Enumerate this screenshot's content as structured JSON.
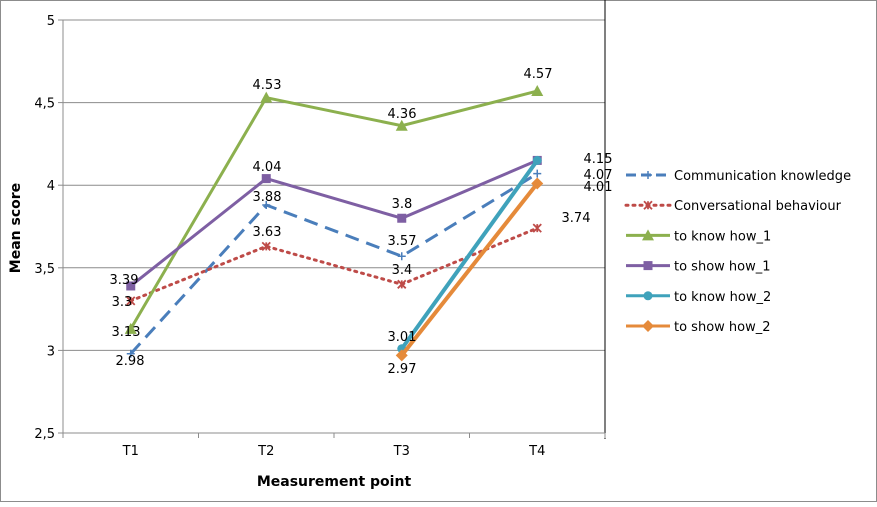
{
  "chart_data": {
    "type": "line",
    "title": "",
    "xlabel": "Measurement point",
    "ylabel": "Mean score",
    "categories": [
      "T1",
      "T2",
      "T3",
      "T4"
    ],
    "ylim": [
      2.5,
      5
    ],
    "yticks": [
      "2,5",
      "3",
      "3,5",
      "4",
      "4,5",
      "5"
    ],
    "ytick_values": [
      2.5,
      3,
      3.5,
      4,
      4.5,
      5
    ],
    "grid": true,
    "legend_position": "right",
    "series": [
      {
        "name": "Communication knowledge",
        "color": "#4A7EBB",
        "style": "dash",
        "marker": "plus",
        "values": [
          2.98,
          3.88,
          3.57,
          4.07
        ],
        "labels": [
          "2.98",
          "3.88",
          "3.57",
          "4.07"
        ]
      },
      {
        "name": "Conversational behaviour",
        "color": "#BE4B48",
        "style": "dot",
        "marker": "star",
        "values": [
          3.3,
          3.63,
          3.4,
          3.74
        ],
        "labels": [
          "3.3",
          "3.63",
          "3.4",
          "3.74"
        ]
      },
      {
        "name": "to know how_1",
        "color": "#8CB04E",
        "style": "solid",
        "marker": "triangle",
        "values": [
          3.13,
          4.53,
          4.36,
          4.57
        ],
        "labels": [
          "3.13",
          "4.53",
          "4.36",
          "4.57"
        ]
      },
      {
        "name": "to show how_1",
        "color": "#7E5FA3",
        "style": "solid",
        "marker": "square",
        "values": [
          3.39,
          4.04,
          3.8,
          4.15
        ],
        "labels": [
          "3.39",
          "4.04",
          "3.8",
          "4.15"
        ]
      },
      {
        "name": "to know how_2",
        "color": "#3FA2BB",
        "style": "solid",
        "marker": "circle",
        "values": [
          null,
          null,
          3.01,
          4.15
        ],
        "labels": [
          null,
          null,
          "3.01",
          null
        ]
      },
      {
        "name": "to show how_2",
        "color": "#E58A3A",
        "style": "solid",
        "marker": "diamond",
        "values": [
          null,
          null,
          2.97,
          4.01
        ],
        "labels": [
          null,
          null,
          "2.97",
          "4.01"
        ]
      }
    ]
  }
}
